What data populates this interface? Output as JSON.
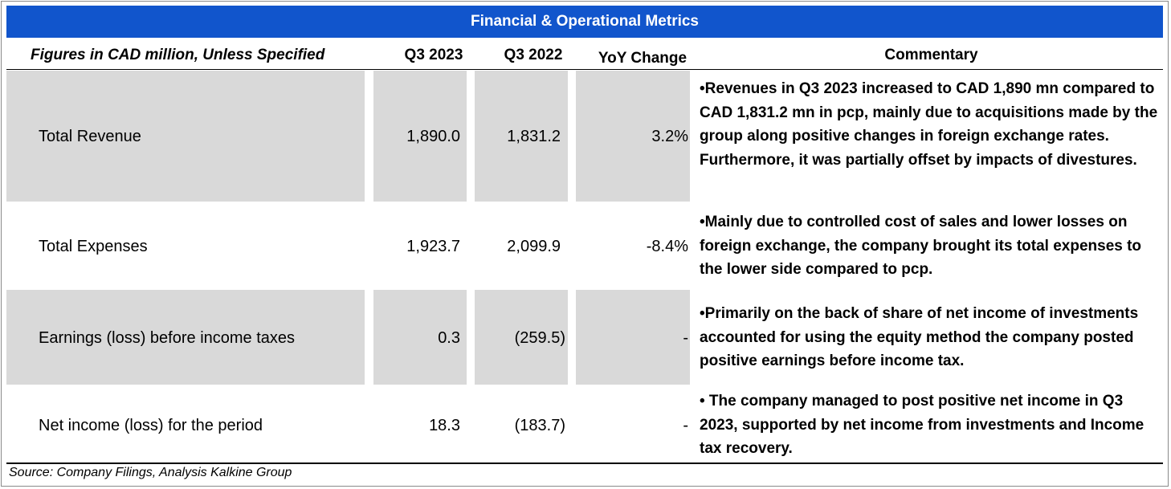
{
  "title": "Financial & Operational Metrics",
  "header": {
    "subtitle": "Figures in CAD million, Unless Specified",
    "col1": "Q3 2023",
    "col2": "Q3 2022",
    "col3": "YoY Change",
    "col4": "Commentary"
  },
  "rows": [
    {
      "label": "Total Revenue",
      "q3_2023": "1,890.0",
      "q3_2022": "1,831.2",
      "yoy": "3.2%",
      "commentary": "•Revenues in Q3 2023 increased to CAD 1,890 mn compared to CAD 1,831.2 mn in pcp, mainly due to acquisitions made by the group along positive changes in foreign exchange rates. Furthermore, it was partially offset by impacts of divestures."
    },
    {
      "label": "Total Expenses",
      "q3_2023": "1,923.7",
      "q3_2022": "2,099.9",
      "yoy": "-8.4%",
      "commentary": "•Mainly due to controlled cost of sales and lower losses on foreign exchange, the company brought its total expenses to the lower side compared to pcp."
    },
    {
      "label": "Earnings (loss) before income taxes",
      "q3_2023": "0.3",
      "q3_2022": "(259.5)",
      "yoy": "-",
      "commentary": "•Primarily on the back of share of net income of investments accounted for using the equity method the company posted positive earnings before income tax."
    },
    {
      "label": "Net income (loss) for the period",
      "q3_2023": "18.3",
      "q3_2022": "(183.7)",
      "yoy": "-",
      "commentary": "• The company managed to post positive net income in Q3 2023, supported by net income from investments and Income tax recovery."
    }
  ],
  "source": "Source: Company Filings, Analysis Kalkine Group",
  "colors": {
    "title_bg": "#1155cc",
    "shade": "#d9d9d9"
  }
}
